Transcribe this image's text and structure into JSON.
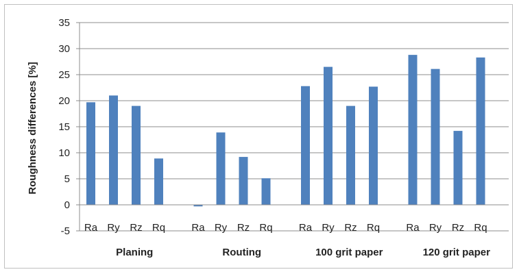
{
  "chart_data": {
    "type": "bar",
    "ylabel": "Roughness differences [%]",
    "xlabel": "",
    "title": "",
    "ylim": [
      -5,
      35
    ],
    "yticks": [
      -5,
      0,
      5,
      10,
      15,
      20,
      25,
      30,
      35
    ],
    "grid": true,
    "bar_color": "#4f81bd",
    "groups": [
      {
        "name": "Planing",
        "categories": [
          "Ra",
          "Ry",
          "Rz",
          "Rq"
        ],
        "values": [
          19.7,
          21.0,
          19.0,
          8.9
        ]
      },
      {
        "name": "Routing",
        "categories": [
          "Ra",
          "Ry",
          "Rz",
          "Rq"
        ],
        "values": [
          -0.3,
          13.9,
          9.2,
          5.1
        ]
      },
      {
        "name": "100 grit paper",
        "categories": [
          "Ra",
          "Ry",
          "Rz",
          "Rq"
        ],
        "values": [
          22.8,
          26.5,
          19.0,
          22.7
        ]
      },
      {
        "name": "120 grit paper",
        "categories": [
          "Ra",
          "Ry",
          "Rz",
          "Rq"
        ],
        "values": [
          28.8,
          26.1,
          14.2,
          28.3
        ]
      }
    ]
  }
}
